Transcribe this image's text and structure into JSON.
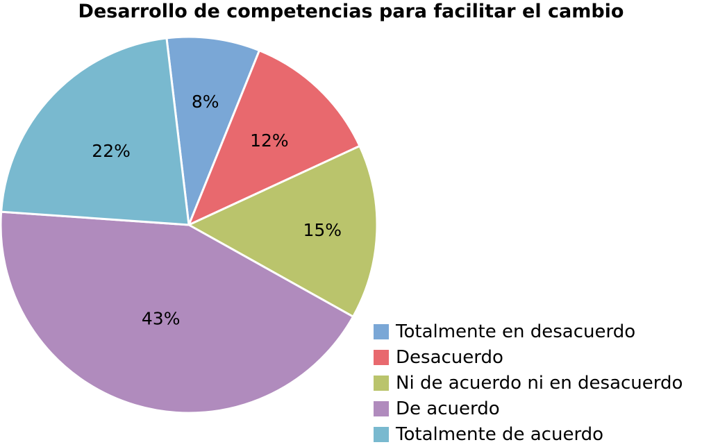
{
  "chart_data": {
    "type": "pie",
    "title": "Desarrollo de competencias para facilitar el cambio",
    "categories": [
      "Totalmente en desacuerdo",
      "Desacuerdo",
      "Ni de acuerdo ni en desacuerdo",
      "De acuerdo",
      "Totalmente de acuerdo"
    ],
    "values": [
      8,
      12,
      15,
      43,
      22
    ],
    "labels": [
      "8%",
      "12%",
      "15%",
      "43%",
      "22%"
    ],
    "colors": [
      "#7aa7d6",
      "#e8696e",
      "#bac46c",
      "#b08bbd",
      "#79b9cf"
    ],
    "legend_position": "bottom-right"
  }
}
